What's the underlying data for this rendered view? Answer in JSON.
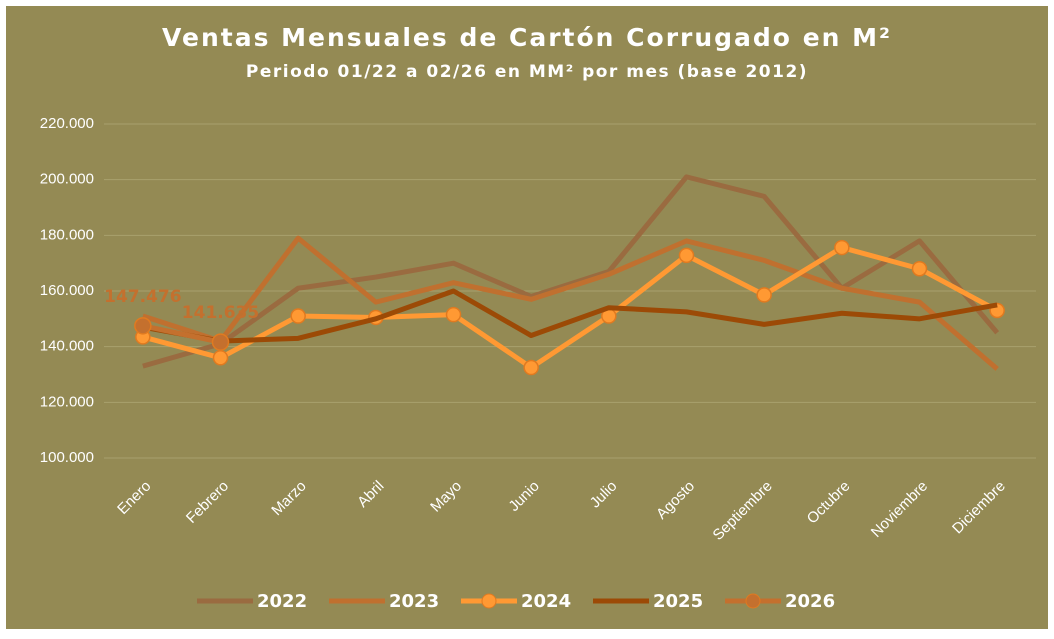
{
  "chart_data": {
    "type": "line",
    "title": "Ventas Mensuales de Cartón Corrugado en M²",
    "subtitle": "Periodo 01/22 a 02/26 en MM² por mes (base 2012)",
    "categories": [
      "Enero",
      "Febrero",
      "Marzo",
      "Abril",
      "Mayo",
      "Junio",
      "Julio",
      "Agosto",
      "Septiembre",
      "Octubre",
      "Noviembre",
      "Diciembre"
    ],
    "series": [
      {
        "name": "2022",
        "color": "#9a6b40",
        "values": [
          133000,
          141000,
          161000,
          165000,
          170000,
          158000,
          167000,
          201000,
          194000,
          161000,
          178000,
          145000
        ]
      },
      {
        "name": "2023",
        "color": "#c0702f",
        "values": [
          151000,
          142000,
          179000,
          156000,
          163000,
          157000,
          166000,
          178000,
          171000,
          161000,
          156000,
          132000
        ]
      },
      {
        "name": "2024",
        "color": "#ff9933",
        "marker": true,
        "values": [
          143500,
          136000,
          151000,
          150500,
          151500,
          132500,
          151000,
          172800,
          158600,
          175600,
          168000,
          153000
        ]
      },
      {
        "name": "2025",
        "color": "#9c4a06",
        "values": [
          147000,
          142000,
          143000,
          150000,
          160000,
          144000,
          154000,
          152500,
          148000,
          152000,
          150000,
          155000
        ]
      },
      {
        "name": "2026",
        "color": "#c4702e",
        "marker": true,
        "values": [
          147476,
          141635,
          null,
          null,
          null,
          null,
          null,
          null,
          null,
          null,
          null,
          null
        ],
        "value_labels": [
          "147.476",
          "141.635",
          null,
          null,
          null,
          null,
          null,
          null,
          null,
          null,
          null,
          null
        ]
      }
    ],
    "ylim": [
      100000,
      220000
    ],
    "yticks": [
      {
        "value": 100000,
        "label": "100.000"
      },
      {
        "value": 120000,
        "label": "120.000"
      },
      {
        "value": 140000,
        "label": "140.000"
      },
      {
        "value": 160000,
        "label": "160.000"
      },
      {
        "value": 180000,
        "label": "180.000"
      },
      {
        "value": 200000,
        "label": "200.000"
      },
      {
        "value": 220000,
        "label": "220.000"
      }
    ],
    "grid": true,
    "legend": "bottom"
  }
}
